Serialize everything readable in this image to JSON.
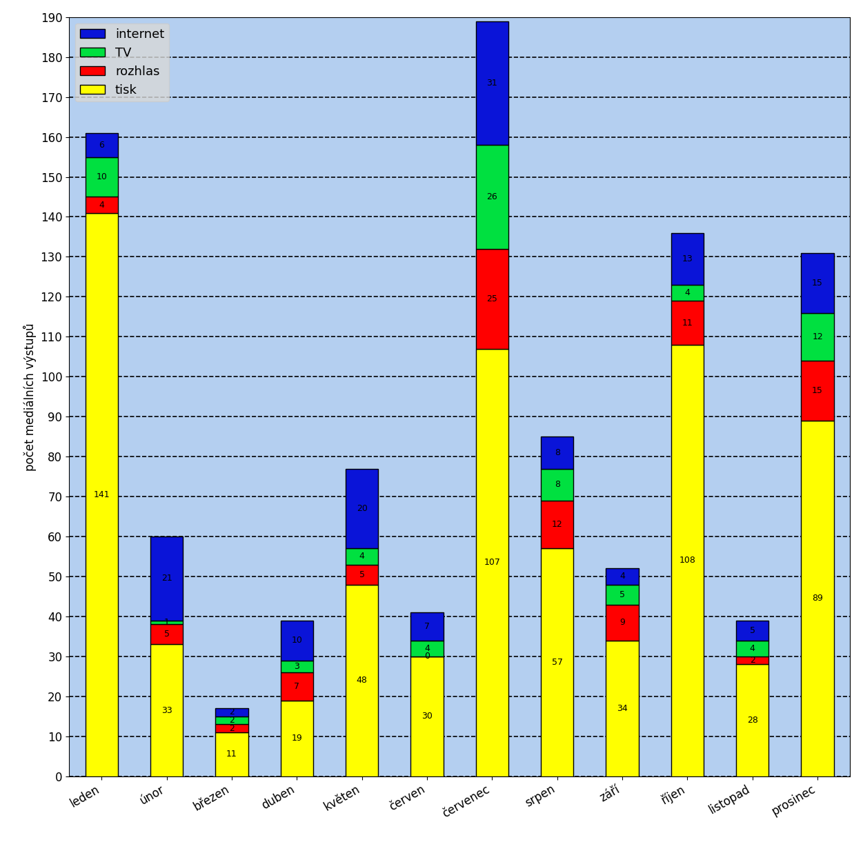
{
  "chart_data": {
    "type": "bar",
    "stacked": true,
    "data_labels": true,
    "grid": true,
    "legend": "upper left",
    "y_label": "počet mediálních výstupů",
    "categories": [
      "leden",
      "únor",
      "březen",
      "duben",
      "květen",
      "červen",
      "červenec",
      "srpen",
      "září",
      "říjen",
      "listopad",
      "prosinec"
    ],
    "series": [
      {
        "name": "tisk",
        "color": "#ffff00",
        "values": [
          141,
          33,
          11,
          19,
          48,
          30,
          107,
          57,
          34,
          108,
          28,
          89
        ]
      },
      {
        "name": "rozhlas",
        "color": "#ff0000",
        "values": [
          4,
          5,
          2,
          7,
          5,
          0,
          25,
          12,
          9,
          11,
          2,
          15
        ]
      },
      {
        "name": "TV",
        "color": "#00e040",
        "values": [
          10,
          1,
          2,
          3,
          4,
          4,
          26,
          8,
          5,
          4,
          4,
          12
        ]
      },
      {
        "name": "internet",
        "color": "#0a14d8",
        "values": [
          6,
          21,
          2,
          10,
          20,
          7,
          31,
          8,
          4,
          13,
          5,
          15
        ]
      }
    ],
    "ylim": [
      0,
      190
    ],
    "yticks": [
      0,
      10,
      20,
      30,
      40,
      50,
      60,
      70,
      80,
      90,
      100,
      110,
      120,
      130,
      140,
      150,
      160,
      170,
      180,
      190
    ]
  }
}
